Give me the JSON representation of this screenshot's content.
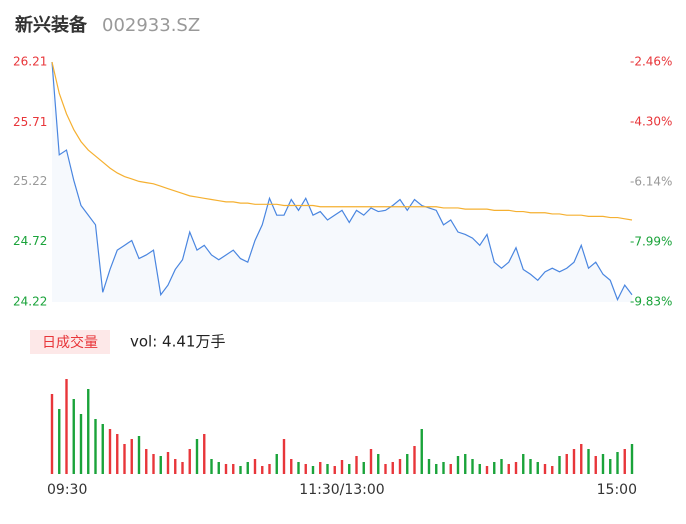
{
  "chart_data": {
    "type": "line",
    "title": "新兴装备",
    "subtitle": "002933.SZ",
    "x": [
      0,
      3,
      6,
      9,
      12,
      15,
      18,
      21,
      24,
      27,
      30,
      33,
      36,
      39,
      42,
      45,
      48,
      51,
      54,
      57,
      60,
      63,
      66,
      69,
      72,
      75,
      78,
      81,
      84,
      87,
      90,
      93,
      96,
      99,
      102,
      105,
      108,
      111,
      114,
      117,
      120,
      123,
      126,
      129,
      132,
      135,
      138,
      141,
      144,
      147,
      150,
      153,
      156,
      159,
      162,
      165,
      168,
      171,
      174,
      177,
      180,
      183,
      186,
      189,
      192,
      195,
      198,
      201,
      204,
      207,
      210,
      213,
      216,
      219,
      222,
      225,
      228,
      231,
      234,
      237,
      240
    ],
    "xlim": [
      0,
      240
    ],
    "xticks": [
      {
        "value": 0,
        "label": "09:30"
      },
      {
        "value": 120,
        "label": "11:30/13:00"
      },
      {
        "value": 240,
        "label": "15:00"
      }
    ],
    "ylim": [
      24.22,
      26.21
    ],
    "yticks": [
      26.21,
      25.71,
      25.22,
      24.72,
      24.22
    ],
    "y2lim": [
      -9.83,
      -2.46
    ],
    "y2ticks": [
      {
        "value": -2.46,
        "label": "-2.46%"
      },
      {
        "value": -4.3,
        "label": "-4.30%"
      },
      {
        "value": -6.14,
        "label": "-6.14%"
      },
      {
        "value": -7.99,
        "label": "-7.99%"
      },
      {
        "value": -9.83,
        "label": "-9.83%"
      }
    ],
    "up_color": "#e8363a",
    "down_color": "#1aa33a",
    "flat_color": "#999999",
    "series": [
      {
        "color": "#4a86e0",
        "values": [
          26.21,
          25.44,
          25.48,
          25.23,
          25.02,
          24.94,
          24.86,
          24.3,
          24.49,
          24.65,
          24.69,
          24.73,
          24.58,
          24.61,
          24.65,
          24.28,
          24.36,
          24.49,
          24.57,
          24.8,
          24.65,
          24.69,
          24.61,
          24.57,
          24.61,
          24.65,
          24.58,
          24.55,
          24.73,
          24.86,
          25.08,
          24.94,
          24.94,
          25.07,
          24.98,
          25.08,
          24.94,
          24.97,
          24.9,
          24.94,
          24.98,
          24.88,
          24.98,
          24.94,
          25.0,
          24.97,
          24.98,
          25.02,
          25.07,
          24.98,
          25.07,
          25.02,
          25.0,
          24.98,
          24.86,
          24.9,
          24.8,
          24.78,
          24.75,
          24.69,
          24.78,
          24.55,
          24.5,
          24.55,
          24.67,
          24.49,
          24.45,
          24.4,
          24.47,
          24.5,
          24.47,
          24.5,
          24.55,
          24.69,
          24.5,
          24.55,
          24.45,
          24.4,
          24.24,
          24.36,
          24.28
        ]
      },
      {
        "color": "#f5b031",
        "values": [
          26.21,
          25.95,
          25.78,
          25.65,
          25.55,
          25.48,
          25.43,
          25.38,
          25.33,
          25.29,
          25.26,
          25.24,
          25.22,
          25.21,
          25.2,
          25.18,
          25.16,
          25.14,
          25.12,
          25.1,
          25.09,
          25.08,
          25.07,
          25.06,
          25.05,
          25.05,
          25.04,
          25.04,
          25.03,
          25.03,
          25.03,
          25.03,
          25.02,
          25.02,
          25.02,
          25.02,
          25.02,
          25.01,
          25.01,
          25.01,
          25.01,
          25.01,
          25.01,
          25.01,
          25.01,
          25.01,
          25.01,
          25.01,
          25.01,
          25.01,
          25.01,
          25.01,
          25.01,
          25.01,
          25.0,
          25.0,
          25.0,
          24.99,
          24.99,
          24.99,
          24.99,
          24.98,
          24.98,
          24.98,
          24.97,
          24.97,
          24.96,
          24.96,
          24.96,
          24.95,
          24.95,
          24.94,
          24.94,
          24.94,
          24.93,
          24.93,
          24.93,
          24.92,
          24.92,
          24.91,
          24.9
        ]
      }
    ],
    "volume_button": "日成交量",
    "volume_label": "vol: 4.41万手",
    "volume_ylim": [
      0,
      100
    ],
    "volume": [
      80,
      65,
      95,
      75,
      60,
      85,
      55,
      50,
      45,
      40,
      30,
      35,
      38,
      25,
      20,
      18,
      22,
      15,
      12,
      25,
      35,
      40,
      15,
      12,
      10,
      10,
      8,
      12,
      15,
      8,
      10,
      20,
      35,
      15,
      12,
      10,
      8,
      12,
      10,
      8,
      14,
      10,
      18,
      12,
      25,
      20,
      10,
      12,
      15,
      20,
      28,
      45,
      15,
      10,
      12,
      10,
      18,
      20,
      15,
      10,
      8,
      12,
      15,
      10,
      12,
      20,
      15,
      12,
      10,
      8,
      18,
      20,
      25,
      30,
      25,
      18,
      20,
      15,
      22,
      25,
      30
    ]
  }
}
